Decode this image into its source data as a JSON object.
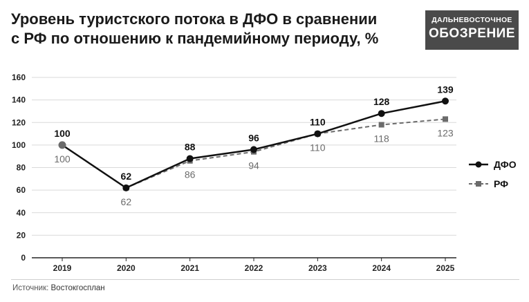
{
  "header": {
    "title_line1": "Уровень туристского потока в ДФО в сравнении",
    "title_line2": "с РФ по отношению к пандемийному периоду, %"
  },
  "logo": {
    "line1": "ДАЛЬНЕВОСТОЧНОЕ",
    "line2": "ОБОЗРЕНИЕ"
  },
  "footer": {
    "source_label": "Источник:",
    "source_value": "Востокгосплан"
  },
  "colors": {
    "dfo": "#111111",
    "rf": "#6b6b6b",
    "axis": "#222222",
    "grid": "#d9d9d9"
  },
  "chart_data": {
    "type": "line",
    "x": [
      "2019",
      "2020",
      "2021",
      "2022",
      "2023",
      "2024",
      "2025"
    ],
    "ylim": [
      0,
      160
    ],
    "yticks": [
      0,
      20,
      40,
      60,
      80,
      100,
      120,
      140,
      160
    ],
    "grid": true,
    "legend_placement": "right",
    "series": [
      {
        "name": "ДФО",
        "values": [
          100,
          62,
          88,
          96,
          110,
          128,
          139
        ],
        "style": "solid",
        "marker": "circle"
      },
      {
        "name": "РФ",
        "values": [
          100,
          62,
          86,
          94,
          110,
          118,
          123
        ],
        "style": "dashed",
        "marker": "square"
      }
    ]
  }
}
